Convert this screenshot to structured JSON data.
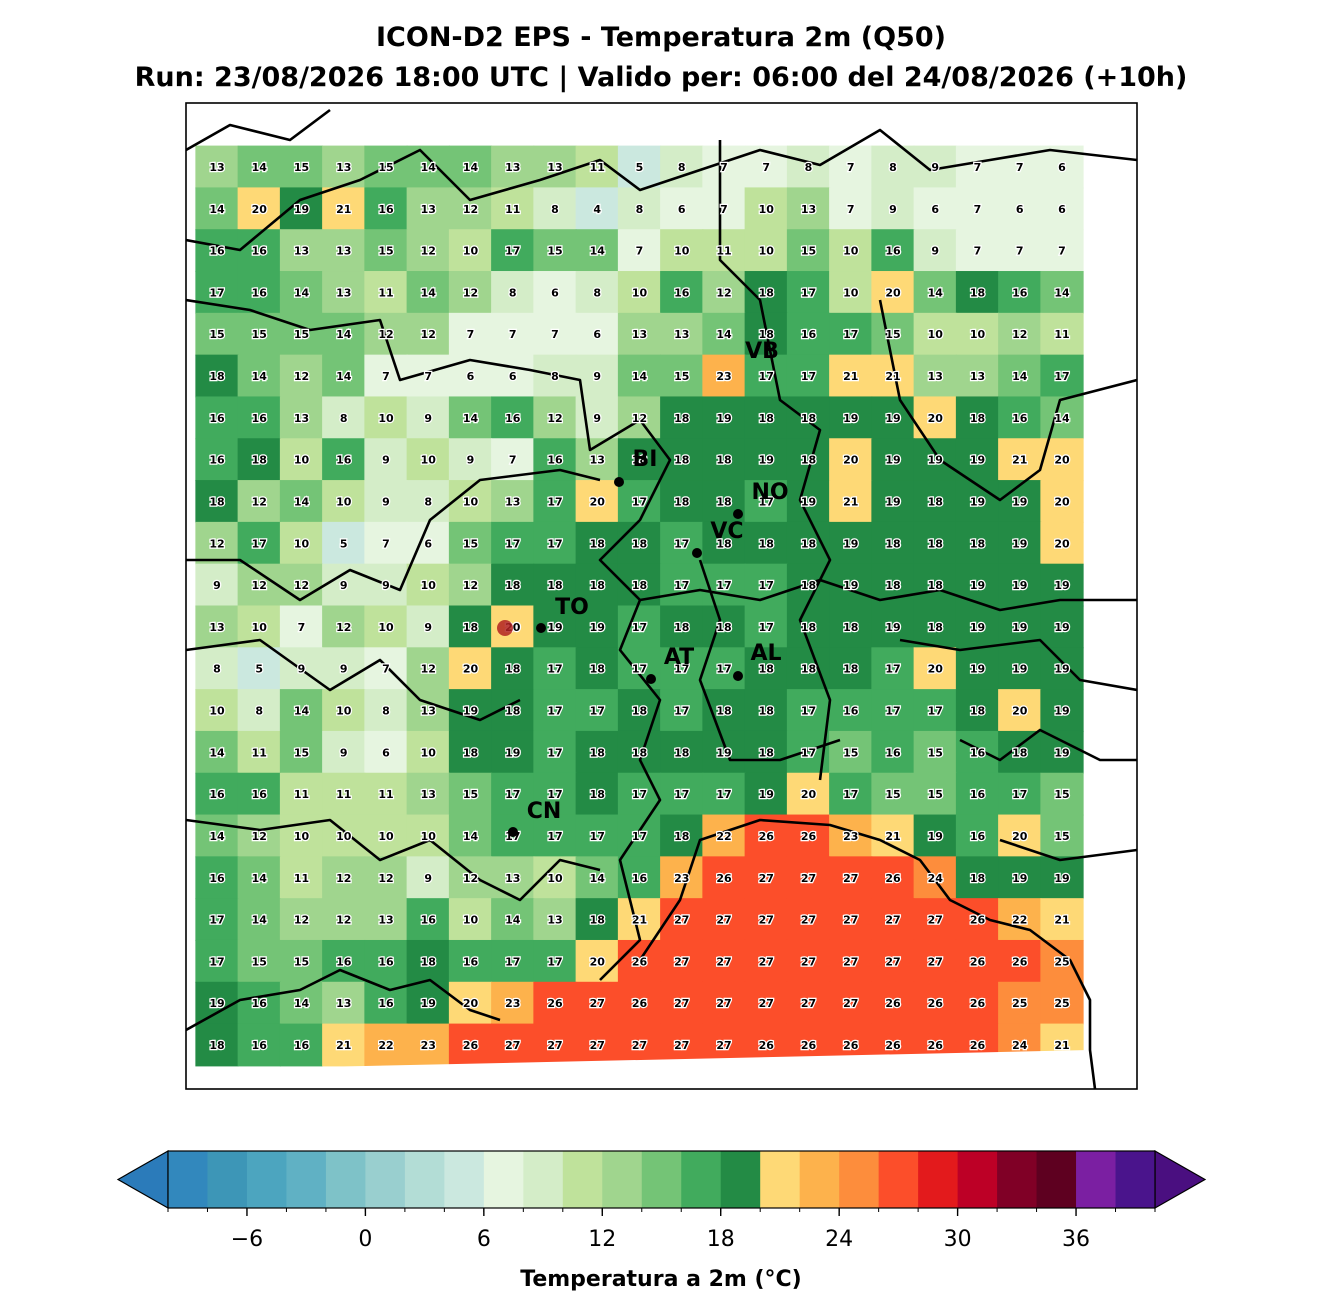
{
  "map": {
    "title": "ICON-D2 EPS - Temperatura 2m (Q50)",
    "subtitle": "Run: 23/08/2026 18:00 UTC | Valido per: 06:00 del 24/08/2026 (+10h)",
    "grid_values": [
      [
        13,
        14,
        15,
        13,
        15,
        14,
        14,
        13,
        13,
        11,
        5,
        8,
        7,
        7,
        8,
        7,
        8,
        9,
        7,
        7,
        6
      ],
      [
        14,
        20,
        19,
        21,
        16,
        13,
        12,
        11,
        8,
        4,
        8,
        6,
        7,
        10,
        13,
        7,
        9,
        6,
        7,
        6,
        6
      ],
      [
        16,
        16,
        13,
        13,
        15,
        12,
        10,
        17,
        15,
        14,
        7,
        10,
        11,
        10,
        15,
        10,
        16,
        9,
        7,
        7,
        7
      ],
      [
        17,
        16,
        14,
        13,
        11,
        14,
        12,
        8,
        6,
        8,
        10,
        16,
        12,
        18,
        17,
        10,
        20,
        14,
        18,
        16,
        14
      ],
      [
        15,
        15,
        15,
        14,
        12,
        12,
        7,
        7,
        7,
        6,
        13,
        13,
        14,
        18,
        16,
        17,
        15,
        10,
        10,
        12,
        11
      ],
      [
        18,
        14,
        12,
        14,
        7,
        7,
        6,
        6,
        8,
        9,
        14,
        15,
        23,
        17,
        17,
        21,
        21,
        13,
        13,
        14,
        17
      ],
      [
        16,
        16,
        13,
        8,
        10,
        9,
        14,
        16,
        12,
        9,
        12,
        18,
        19,
        18,
        18,
        19,
        19,
        20,
        18,
        16,
        14
      ],
      [
        16,
        18,
        10,
        16,
        9,
        10,
        9,
        7,
        16,
        13,
        18,
        18,
        18,
        19,
        18,
        20,
        19,
        19,
        19,
        21,
        20
      ],
      [
        18,
        12,
        14,
        10,
        9,
        8,
        10,
        13,
        17,
        20,
        17,
        18,
        18,
        17,
        19,
        21,
        19,
        18,
        19,
        19,
        20
      ],
      [
        12,
        17,
        10,
        5,
        7,
        6,
        15,
        17,
        17,
        18,
        18,
        17,
        18,
        18,
        18,
        19,
        18,
        18,
        18,
        19,
        20
      ],
      [
        9,
        12,
        12,
        9,
        9,
        10,
        12,
        18,
        18,
        18,
        18,
        17,
        17,
        17,
        18,
        19,
        18,
        18,
        19,
        19,
        19
      ],
      [
        13,
        10,
        7,
        12,
        10,
        9,
        18,
        20,
        19,
        19,
        17,
        18,
        18,
        17,
        18,
        18,
        19,
        18,
        19,
        19,
        19
      ],
      [
        8,
        5,
        9,
        9,
        7,
        12,
        20,
        18,
        17,
        18,
        17,
        17,
        17,
        18,
        18,
        18,
        17,
        20,
        19,
        19,
        19
      ],
      [
        10,
        8,
        14,
        10,
        8,
        13,
        19,
        18,
        17,
        17,
        18,
        17,
        18,
        18,
        17,
        16,
        17,
        17,
        18,
        20,
        19
      ],
      [
        14,
        11,
        15,
        9,
        6,
        10,
        18,
        19,
        17,
        18,
        18,
        18,
        19,
        18,
        17,
        15,
        16,
        15,
        16,
        18,
        19
      ],
      [
        16,
        16,
        11,
        11,
        11,
        13,
        15,
        17,
        17,
        18,
        17,
        17,
        17,
        19,
        20,
        17,
        15,
        15,
        16,
        17,
        15
      ],
      [
        14,
        12,
        10,
        10,
        10,
        10,
        14,
        17,
        17,
        17,
        17,
        18,
        22,
        26,
        26,
        23,
        21,
        19,
        16,
        20,
        15
      ],
      [
        16,
        14,
        11,
        12,
        12,
        9,
        12,
        13,
        10,
        14,
        16,
        23,
        26,
        27,
        27,
        27,
        26,
        24,
        18,
        19,
        19
      ],
      [
        17,
        14,
        12,
        12,
        13,
        16,
        10,
        14,
        13,
        18,
        21,
        27,
        27,
        27,
        27,
        27,
        27,
        27,
        26,
        22,
        21
      ],
      [
        17,
        15,
        15,
        16,
        16,
        18,
        16,
        17,
        17,
        20,
        26,
        27,
        27,
        27,
        27,
        27,
        27,
        27,
        26,
        26,
        25
      ],
      [
        19,
        16,
        14,
        13,
        16,
        19,
        20,
        23,
        26,
        27,
        26,
        27,
        27,
        27,
        27,
        27,
        26,
        26,
        26,
        25,
        25
      ],
      [
        18,
        16,
        16,
        21,
        22,
        23,
        26,
        27,
        27,
        27,
        27,
        27,
        27,
        26,
        26,
        26,
        26,
        26,
        26,
        24,
        21
      ]
    ],
    "cities": [
      "VB",
      "BI",
      "NO",
      "VC",
      "TO",
      "AT",
      "AL",
      "CN"
    ],
    "colorbar": {
      "label": "Temperatura a 2m (°C)",
      "levels": [
        -10,
        -8,
        -6,
        -4,
        -2,
        0,
        2,
        4,
        6,
        8,
        10,
        12,
        14,
        16,
        18,
        20,
        22,
        24,
        26,
        28,
        30,
        32,
        34,
        36,
        38,
        40
      ],
      "colors": [
        "#3288bd",
        "#3d96b7",
        "#4ca5bf",
        "#60b1c4",
        "#7ec2c8",
        "#99cfcf",
        "#b3ddd6",
        "#cbe8df",
        "#e6f5e0",
        "#d4edc8",
        "#bfe29b",
        "#a0d58e",
        "#74c476",
        "#41ab5d",
        "#238b45",
        "#fed976",
        "#fdb24c",
        "#fd8d3c",
        "#fc4e2a",
        "#e31a1c",
        "#bd0026",
        "#800026",
        "#5e0020",
        "#7b1fa2",
        "#4a148c"
      ],
      "under_color": "#2b7bba",
      "over_color": "#4a0f80",
      "ticks": [
        {
          "value": -6,
          "label": "−6"
        },
        0,
        6,
        12,
        18,
        24,
        30,
        36
      ]
    }
  }
}
